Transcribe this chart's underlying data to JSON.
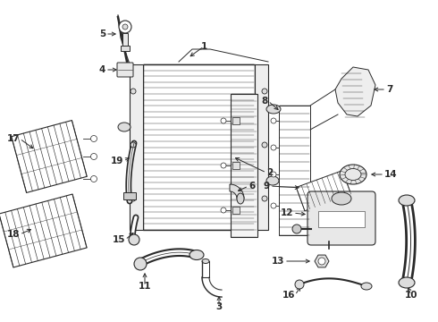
{
  "bg": "#ffffff",
  "lc": "#2a2a2a",
  "fig_w": 4.9,
  "fig_h": 3.6,
  "dpi": 100
}
